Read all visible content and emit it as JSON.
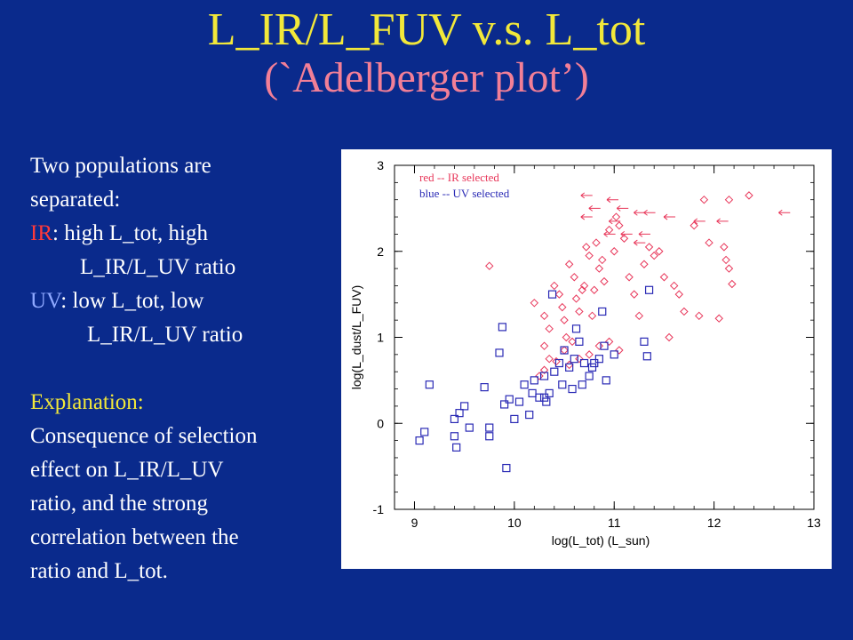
{
  "title": {
    "line1": "L_IR/L_FUV v.s. L_tot",
    "line2": "(`Adelberger plot’)"
  },
  "text_panel": {
    "intro_line1": "Two populations are",
    "intro_line2": "separated:",
    "ir_label": "IR",
    "ir_line1": ": high L_tot, high",
    "ir_line2": "L_IR/L_UV ratio",
    "uv_label": "UV",
    "uv_line1": ": low L_tot, low",
    "uv_line2": "L_IR/L_UV ratio",
    "explanation_heading": "Explanation:",
    "explanation_lines": [
      "Consequence  of selection",
      "effect on L_IR/L_UV",
      "ratio, and the strong",
      "correlation between the",
      "ratio and L_tot."
    ]
  },
  "colors": {
    "background": "#0a2a8c",
    "title_line1": "#f2e83a",
    "title_line2": "#f27f97",
    "ir_text": "#ff3a3a",
    "uv_text": "#8ea8ff",
    "explanation": "#f2e83a",
    "red_series": "#e8375a",
    "blue_series": "#2a2ab5"
  },
  "chart_data": {
    "type": "scatter",
    "xlabel": "log(L_tot) (L_sun)",
    "ylabel": "log(L_dust/L_FUV)",
    "xlim": [
      8.8,
      13.0
    ],
    "ylim": [
      -1.0,
      3.0
    ],
    "xticks": [
      9,
      10,
      11,
      12,
      13
    ],
    "yticks": [
      -1,
      0,
      1,
      2,
      3
    ],
    "grid": false,
    "legend_position": "top-left",
    "legend": [
      {
        "text": "red -- IR selected",
        "color": "#e8375a"
      },
      {
        "text": "blue -- UV selected",
        "color": "#2a2ab5"
      }
    ],
    "series": [
      {
        "name": "red -- IR selected",
        "marker": "diamond",
        "color": "#e8375a",
        "points": [
          [
            9.75,
            1.83
          ],
          [
            10.2,
            1.4
          ],
          [
            10.3,
            1.25
          ],
          [
            10.35,
            1.1
          ],
          [
            10.3,
            0.9
          ],
          [
            10.35,
            0.75
          ],
          [
            10.4,
            1.6
          ],
          [
            10.45,
            1.5
          ],
          [
            10.48,
            1.35
          ],
          [
            10.5,
            1.2
          ],
          [
            10.52,
            1.0
          ],
          [
            10.55,
            1.85
          ],
          [
            10.6,
            1.7
          ],
          [
            10.62,
            1.45
          ],
          [
            10.65,
            1.3
          ],
          [
            10.68,
            1.55
          ],
          [
            10.7,
            1.6
          ],
          [
            10.72,
            2.05
          ],
          [
            10.75,
            1.95
          ],
          [
            10.78,
            1.25
          ],
          [
            10.8,
            1.55
          ],
          [
            10.82,
            2.1
          ],
          [
            10.85,
            1.8
          ],
          [
            10.88,
            1.9
          ],
          [
            10.9,
            1.65
          ],
          [
            10.95,
            2.25
          ],
          [
            11.0,
            2.0
          ],
          [
            11.02,
            2.4
          ],
          [
            11.05,
            2.3
          ],
          [
            11.1,
            2.15
          ],
          [
            11.15,
            1.7
          ],
          [
            11.2,
            1.5
          ],
          [
            11.25,
            1.25
          ],
          [
            11.3,
            1.85
          ],
          [
            11.35,
            2.05
          ],
          [
            11.4,
            1.95
          ],
          [
            11.45,
            2.0
          ],
          [
            11.5,
            1.7
          ],
          [
            11.55,
            1.0
          ],
          [
            11.6,
            1.6
          ],
          [
            11.65,
            1.5
          ],
          [
            11.7,
            1.3
          ],
          [
            11.8,
            2.3
          ],
          [
            11.85,
            1.25
          ],
          [
            11.9,
            2.6
          ],
          [
            11.95,
            2.1
          ],
          [
            12.05,
            1.22
          ],
          [
            12.1,
            2.05
          ],
          [
            12.12,
            1.9
          ],
          [
            12.15,
            1.8
          ],
          [
            12.18,
            1.62
          ],
          [
            12.15,
            2.6
          ],
          [
            12.35,
            2.65
          ],
          [
            10.5,
            0.85
          ],
          [
            10.58,
            0.95
          ],
          [
            10.65,
            0.75
          ],
          [
            10.75,
            0.8
          ],
          [
            10.85,
            0.9
          ],
          [
            10.95,
            0.95
          ],
          [
            11.05,
            0.85
          ],
          [
            10.42,
            0.72
          ],
          [
            10.55,
            0.68
          ],
          [
            10.25,
            0.55
          ],
          [
            10.3,
            0.62
          ]
        ],
        "upper_limits": [
          [
            10.72,
            2.65
          ],
          [
            10.98,
            2.6
          ],
          [
            10.8,
            2.5
          ],
          [
            11.08,
            2.5
          ],
          [
            10.72,
            2.4
          ],
          [
            11.25,
            2.45
          ],
          [
            11.0,
            2.35
          ],
          [
            11.35,
            2.45
          ],
          [
            11.55,
            2.4
          ],
          [
            11.85,
            2.35
          ],
          [
            12.08,
            2.35
          ],
          [
            12.7,
            2.45
          ],
          [
            11.12,
            2.2
          ],
          [
            11.3,
            2.2
          ],
          [
            10.95,
            2.2
          ],
          [
            11.25,
            2.1
          ]
        ]
      },
      {
        "name": "blue -- UV selected",
        "marker": "square",
        "color": "#2a2ab5",
        "points": [
          [
            9.05,
            -0.2
          ],
          [
            9.1,
            -0.1
          ],
          [
            9.15,
            0.45
          ],
          [
            9.4,
            0.05
          ],
          [
            9.4,
            -0.15
          ],
          [
            9.42,
            -0.28
          ],
          [
            9.45,
            0.12
          ],
          [
            9.5,
            0.2
          ],
          [
            9.55,
            -0.05
          ],
          [
            9.7,
            0.42
          ],
          [
            9.75,
            -0.05
          ],
          [
            9.75,
            -0.15
          ],
          [
            9.85,
            0.82
          ],
          [
            9.88,
            1.12
          ],
          [
            9.9,
            0.22
          ],
          [
            9.92,
            -0.52
          ],
          [
            9.95,
            0.28
          ],
          [
            10.0,
            0.05
          ],
          [
            10.05,
            0.25
          ],
          [
            10.1,
            0.45
          ],
          [
            10.15,
            0.1
          ],
          [
            10.18,
            0.35
          ],
          [
            10.2,
            0.5
          ],
          [
            10.25,
            0.3
          ],
          [
            10.3,
            0.55
          ],
          [
            10.32,
            0.25
          ],
          [
            10.38,
            1.5
          ],
          [
            10.35,
            0.35
          ],
          [
            10.4,
            0.6
          ],
          [
            10.45,
            0.7
          ],
          [
            10.48,
            0.45
          ],
          [
            10.5,
            0.85
          ],
          [
            10.55,
            0.65
          ],
          [
            10.58,
            0.4
          ],
          [
            10.6,
            0.75
          ],
          [
            10.62,
            1.1
          ],
          [
            10.65,
            0.95
          ],
          [
            10.68,
            0.45
          ],
          [
            10.7,
            0.7
          ],
          [
            10.75,
            0.55
          ],
          [
            10.78,
            0.65
          ],
          [
            10.8,
            0.7
          ],
          [
            10.85,
            0.75
          ],
          [
            10.88,
            1.3
          ],
          [
            10.9,
            0.9
          ],
          [
            10.92,
            0.5
          ],
          [
            11.0,
            0.8
          ],
          [
            11.3,
            0.95
          ],
          [
            11.33,
            0.78
          ],
          [
            11.35,
            1.55
          ],
          [
            10.3,
            0.3
          ]
        ],
        "upper_limits": []
      }
    ]
  }
}
